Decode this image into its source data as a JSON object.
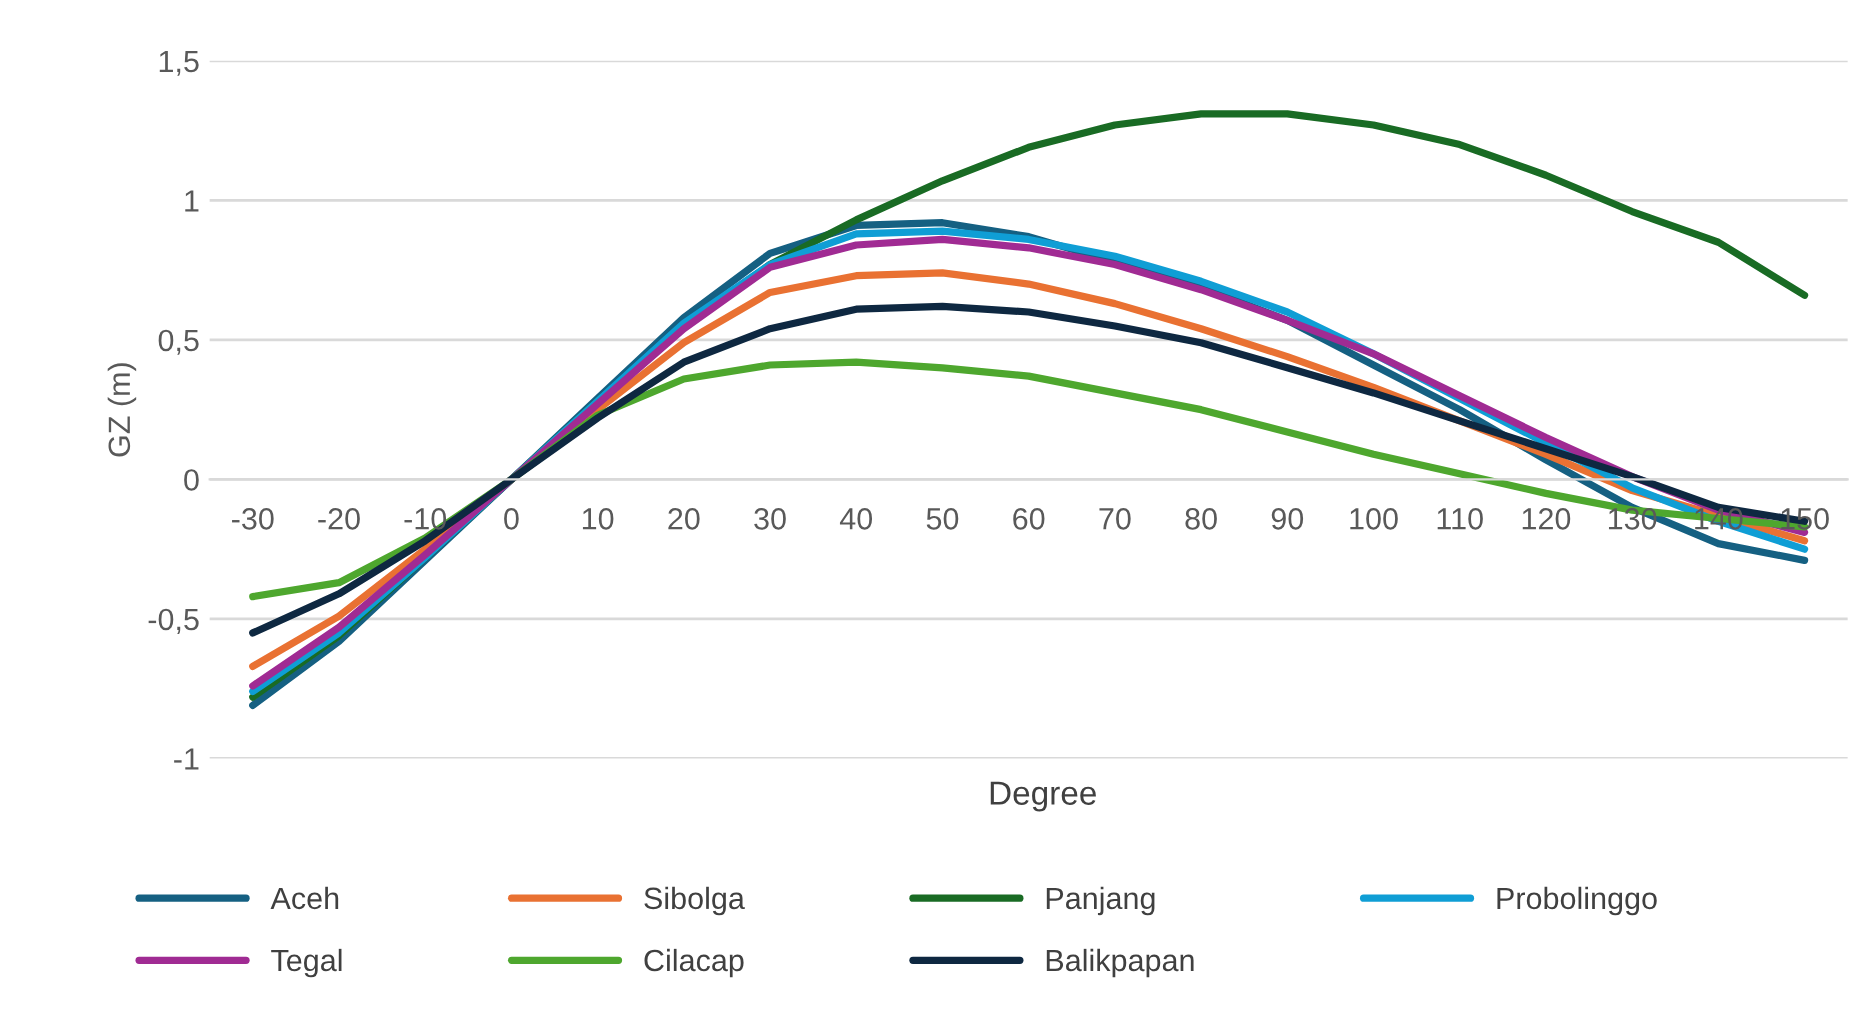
{
  "chart_data": {
    "type": "line",
    "xlabel": "Degree",
    "ylabel": "GZ (m)",
    "categories": [
      "-30",
      "-20",
      "-10",
      "0",
      "10",
      "20",
      "30",
      "40",
      "50",
      "60",
      "70",
      "80",
      "90",
      "100",
      "110",
      "120",
      "130",
      "140",
      "150"
    ],
    "series": [
      {
        "name": "Aceh",
        "color": "#156082",
        "values": [
          -0.81,
          -0.58,
          -0.29,
          0,
          0.29,
          0.58,
          0.81,
          0.91,
          0.92,
          0.87,
          0.78,
          0.69,
          0.57,
          0.41,
          0.25,
          0.07,
          -0.1,
          -0.23,
          -0.29
        ]
      },
      {
        "name": "Sibolga",
        "color": "#e97132",
        "values": [
          -0.67,
          -0.49,
          -0.25,
          0,
          0.25,
          0.49,
          0.67,
          0.73,
          0.74,
          0.7,
          0.63,
          0.54,
          0.44,
          0.33,
          0.21,
          0.09,
          -0.04,
          -0.13,
          -0.22
        ]
      },
      {
        "name": "Panjang",
        "color": "#196b24",
        "values": [
          -0.78,
          -0.56,
          -0.28,
          0,
          0.28,
          0.55,
          0.77,
          0.93,
          1.07,
          1.19,
          1.27,
          1.31,
          1.31,
          1.27,
          1.2,
          1.09,
          0.96,
          0.85,
          0.66
        ]
      },
      {
        "name": "Probolinggo",
        "color": "#0f9ed5",
        "values": [
          -0.76,
          -0.55,
          -0.28,
          0,
          0.28,
          0.56,
          0.77,
          0.88,
          0.89,
          0.86,
          0.8,
          0.71,
          0.6,
          0.45,
          0.29,
          0.13,
          -0.03,
          -0.15,
          -0.25
        ]
      },
      {
        "name": "Tegal",
        "color": "#a02b93",
        "values": [
          -0.74,
          -0.53,
          -0.27,
          0,
          0.27,
          0.54,
          0.76,
          0.84,
          0.86,
          0.83,
          0.77,
          0.68,
          0.57,
          0.45,
          0.3,
          0.15,
          0.01,
          -0.11,
          -0.19
        ]
      },
      {
        "name": "Cilacap",
        "color": "#4ea72e",
        "values": [
          -0.42,
          -0.37,
          -0.21,
          0,
          0.23,
          0.36,
          0.41,
          0.42,
          0.4,
          0.37,
          0.31,
          0.25,
          0.17,
          0.09,
          0.02,
          -0.05,
          -0.11,
          -0.14,
          -0.17
        ]
      },
      {
        "name": "Balikpapan",
        "color": "#0e2841",
        "values": [
          -0.55,
          -0.41,
          -0.22,
          0,
          0.22,
          0.42,
          0.54,
          0.61,
          0.62,
          0.6,
          0.55,
          0.49,
          0.4,
          0.31,
          0.21,
          0.11,
          0.01,
          -0.1,
          -0.15
        ]
      }
    ],
    "ylim": [
      -1,
      1.5
    ],
    "yticks": [
      {
        "value": -1,
        "label": "-1"
      },
      {
        "value": -0.5,
        "label": "-0,5"
      },
      {
        "value": 0,
        "label": "0"
      },
      {
        "value": 0.5,
        "label": "0,5"
      },
      {
        "value": 1,
        "label": "1"
      },
      {
        "value": 1.5,
        "label": "1,5"
      }
    ],
    "grid": "y",
    "legend": "bottom",
    "line_style": "solid",
    "marker": "none"
  }
}
